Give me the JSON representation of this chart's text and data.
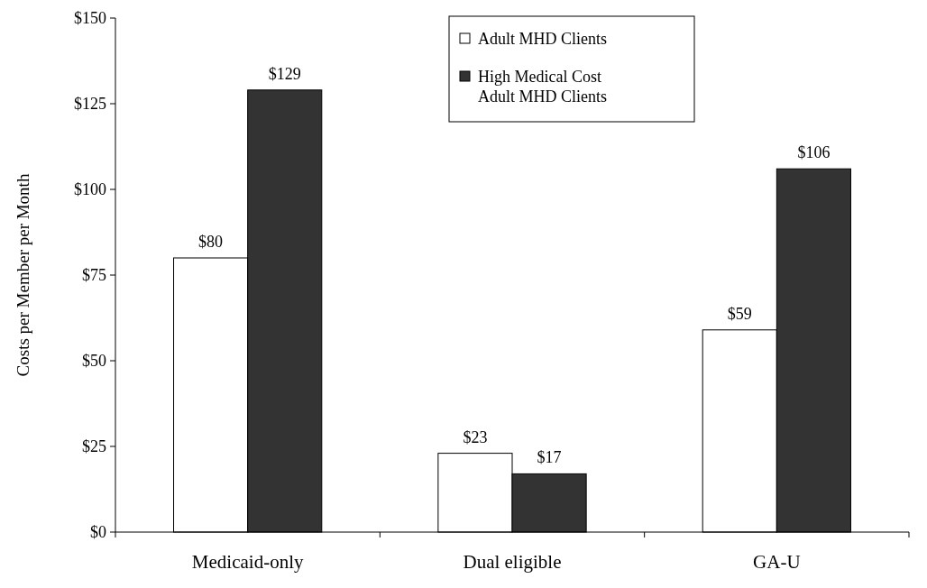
{
  "chart_data": {
    "type": "bar",
    "ylabel": "Costs per Member per Month",
    "categories": [
      "Medicaid-only",
      "Dual eligible",
      "GA-U"
    ],
    "series": [
      {
        "name": "Adult MHD Clients",
        "color": "#ffffff",
        "values": [
          80,
          23,
          59
        ],
        "value_labels": [
          "$80",
          "$23",
          "$59"
        ]
      },
      {
        "name": "High Medical Cost Adult MHD Clients",
        "color": "#333333",
        "values": [
          129,
          17,
          106
        ],
        "value_labels": [
          "$129",
          "$17",
          "$106"
        ]
      }
    ],
    "ylim": [
      0,
      150
    ],
    "yticks": [
      {
        "value": 0,
        "label": "$0"
      },
      {
        "value": 25,
        "label": "$25"
      },
      {
        "value": 50,
        "label": "$50"
      },
      {
        "value": 75,
        "label": "$75"
      },
      {
        "value": 100,
        "label": "$100"
      },
      {
        "value": 125,
        "label": "$125"
      },
      {
        "value": 150,
        "label": "$150"
      }
    ],
    "legend": "top",
    "grid": false
  }
}
